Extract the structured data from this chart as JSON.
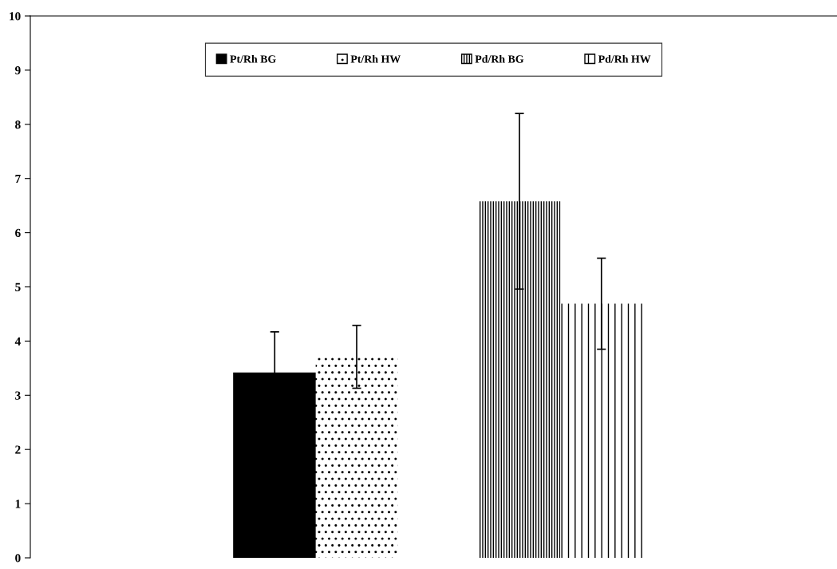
{
  "chart_data": {
    "type": "bar",
    "categories": [
      null,
      null
    ],
    "series": [
      {
        "name": "Pt/Rh BG",
        "color": "#000000",
        "values": [
          3.41,
          null
        ],
        "errors": [
          0.76,
          null
        ]
      },
      {
        "name": "Pt/Rh HW",
        "color": "#ffffff",
        "values": [
          3.71,
          null
        ],
        "errors": [
          0.58,
          null
        ]
      },
      {
        "name": "Pd/Rh BG",
        "color": "#ffffff",
        "values": [
          null,
          6.58
        ],
        "errors": [
          null,
          1.62
        ]
      },
      {
        "name": "Pd/Rh HW",
        "color": "#ffffff",
        "values": [
          null,
          4.69
        ],
        "errors": [
          null,
          0.84
        ]
      }
    ],
    "ylim": [
      0,
      10
    ],
    "yticks": [
      0,
      1,
      2,
      3,
      4,
      5,
      6,
      7,
      8,
      9,
      10
    ],
    "grid": false,
    "legend": "top"
  }
}
